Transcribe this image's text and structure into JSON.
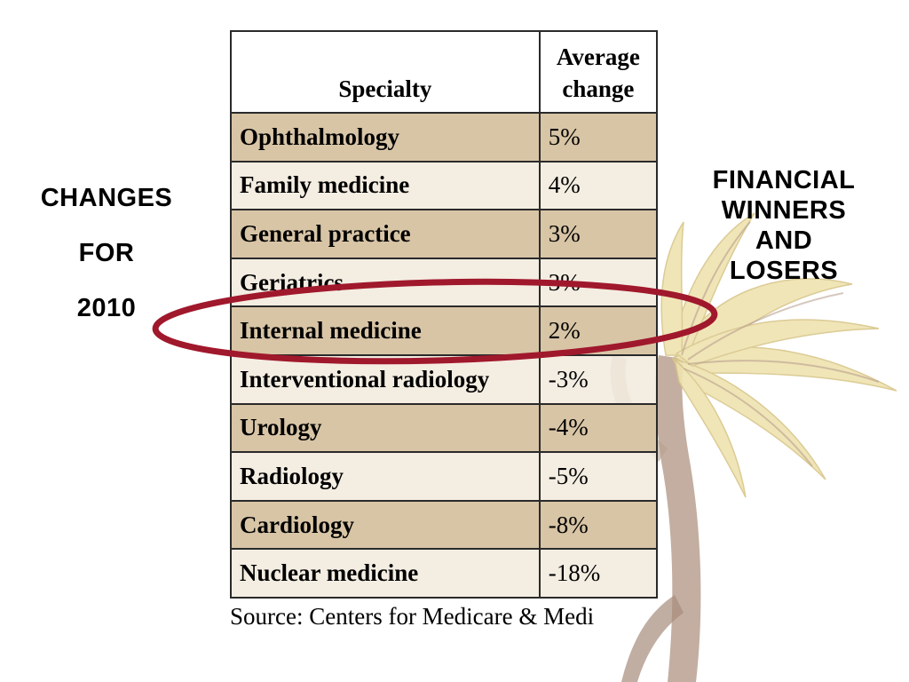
{
  "slide": {
    "left_label": [
      "CHANGES",
      "FOR",
      "2010"
    ],
    "right_label": [
      "FINANCIAL",
      "WINNERS",
      "AND",
      "LOSERS"
    ],
    "source": "Source: Centers for Medicare & Medi"
  },
  "table": {
    "header_specialty": "Specialty",
    "header_change_line1": "Average",
    "header_change_line2": "change",
    "rows": [
      {
        "specialty": "Ophthalmology",
        "change": "5%"
      },
      {
        "specialty": "Family medicine",
        "change": "4%"
      },
      {
        "specialty": "General practice",
        "change": "3%"
      },
      {
        "specialty": "Geriatrics",
        "change": "3%"
      },
      {
        "specialty": "Internal medicine",
        "change": "2%"
      },
      {
        "specialty": "Interventional radiology",
        "change": "-3%"
      },
      {
        "specialty": "Urology",
        "change": "-4%"
      },
      {
        "specialty": "Radiology",
        "change": "-5%"
      },
      {
        "specialty": "Cardiology",
        "change": "-8%"
      },
      {
        "specialty": "Nuclear medicine",
        "change": "-18%"
      }
    ],
    "highlighted_row": "Internal medicine"
  },
  "colors": {
    "row_odd": "#d8c5a6",
    "row_even": "#f2ebde",
    "highlight_ellipse": "#a0182c",
    "palm_trunk": "#b49a8a",
    "palm_fronds": "#efe3b0"
  },
  "icons": {
    "background": "palm-tree-illustration",
    "annotation": "highlight-ellipse"
  }
}
